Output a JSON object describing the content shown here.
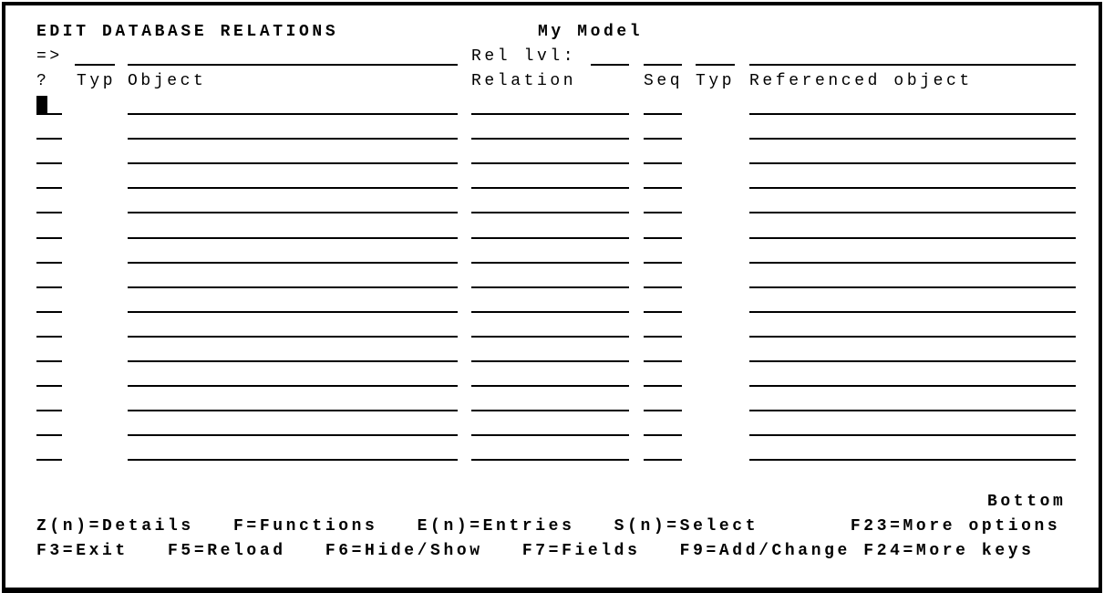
{
  "screen": {
    "title": "EDIT DATABASE RELATIONS",
    "model_name": "My Model",
    "prompt_arrow": "=>",
    "rel_level_label": "Rel lvl:",
    "filter": {
      "typ": "",
      "object": "",
      "rel_level": "",
      "seq": "",
      "ref_typ": "",
      "referenced_object": ""
    }
  },
  "columns": {
    "option": "?",
    "typ": "Typ",
    "object": "Object",
    "relation": "Relation",
    "seq": "Seq",
    "ref_typ": "Typ",
    "referenced_object": "Referenced object"
  },
  "rows": [
    {
      "option": "",
      "object": "",
      "relation": "",
      "seq": "",
      "referenced_object": ""
    },
    {
      "option": "",
      "object": "",
      "relation": "",
      "seq": "",
      "referenced_object": ""
    },
    {
      "option": "",
      "object": "",
      "relation": "",
      "seq": "",
      "referenced_object": ""
    },
    {
      "option": "",
      "object": "",
      "relation": "",
      "seq": "",
      "referenced_object": ""
    },
    {
      "option": "",
      "object": "",
      "relation": "",
      "seq": "",
      "referenced_object": ""
    },
    {
      "option": "",
      "object": "",
      "relation": "",
      "seq": "",
      "referenced_object": ""
    },
    {
      "option": "",
      "object": "",
      "relation": "",
      "seq": "",
      "referenced_object": ""
    },
    {
      "option": "",
      "object": "",
      "relation": "",
      "seq": "",
      "referenced_object": ""
    },
    {
      "option": "",
      "object": "",
      "relation": "",
      "seq": "",
      "referenced_object": ""
    },
    {
      "option": "",
      "object": "",
      "relation": "",
      "seq": "",
      "referenced_object": ""
    },
    {
      "option": "",
      "object": "",
      "relation": "",
      "seq": "",
      "referenced_object": ""
    },
    {
      "option": "",
      "object": "",
      "relation": "",
      "seq": "",
      "referenced_object": ""
    },
    {
      "option": "",
      "object": "",
      "relation": "",
      "seq": "",
      "referenced_object": ""
    },
    {
      "option": "",
      "object": "",
      "relation": "",
      "seq": "",
      "referenced_object": ""
    },
    {
      "option": "",
      "object": "",
      "relation": "",
      "seq": "",
      "referenced_object": ""
    }
  ],
  "footer": {
    "position": "Bottom",
    "options_line": "Z(n)=Details   F=Functions   E(n)=Entries   S(n)=Select       F23=More options",
    "keys_line": "F3=Exit   F5=Reload   F6=Hide/Show   F7=Fields   F9=Add/Change F24=More keys"
  }
}
